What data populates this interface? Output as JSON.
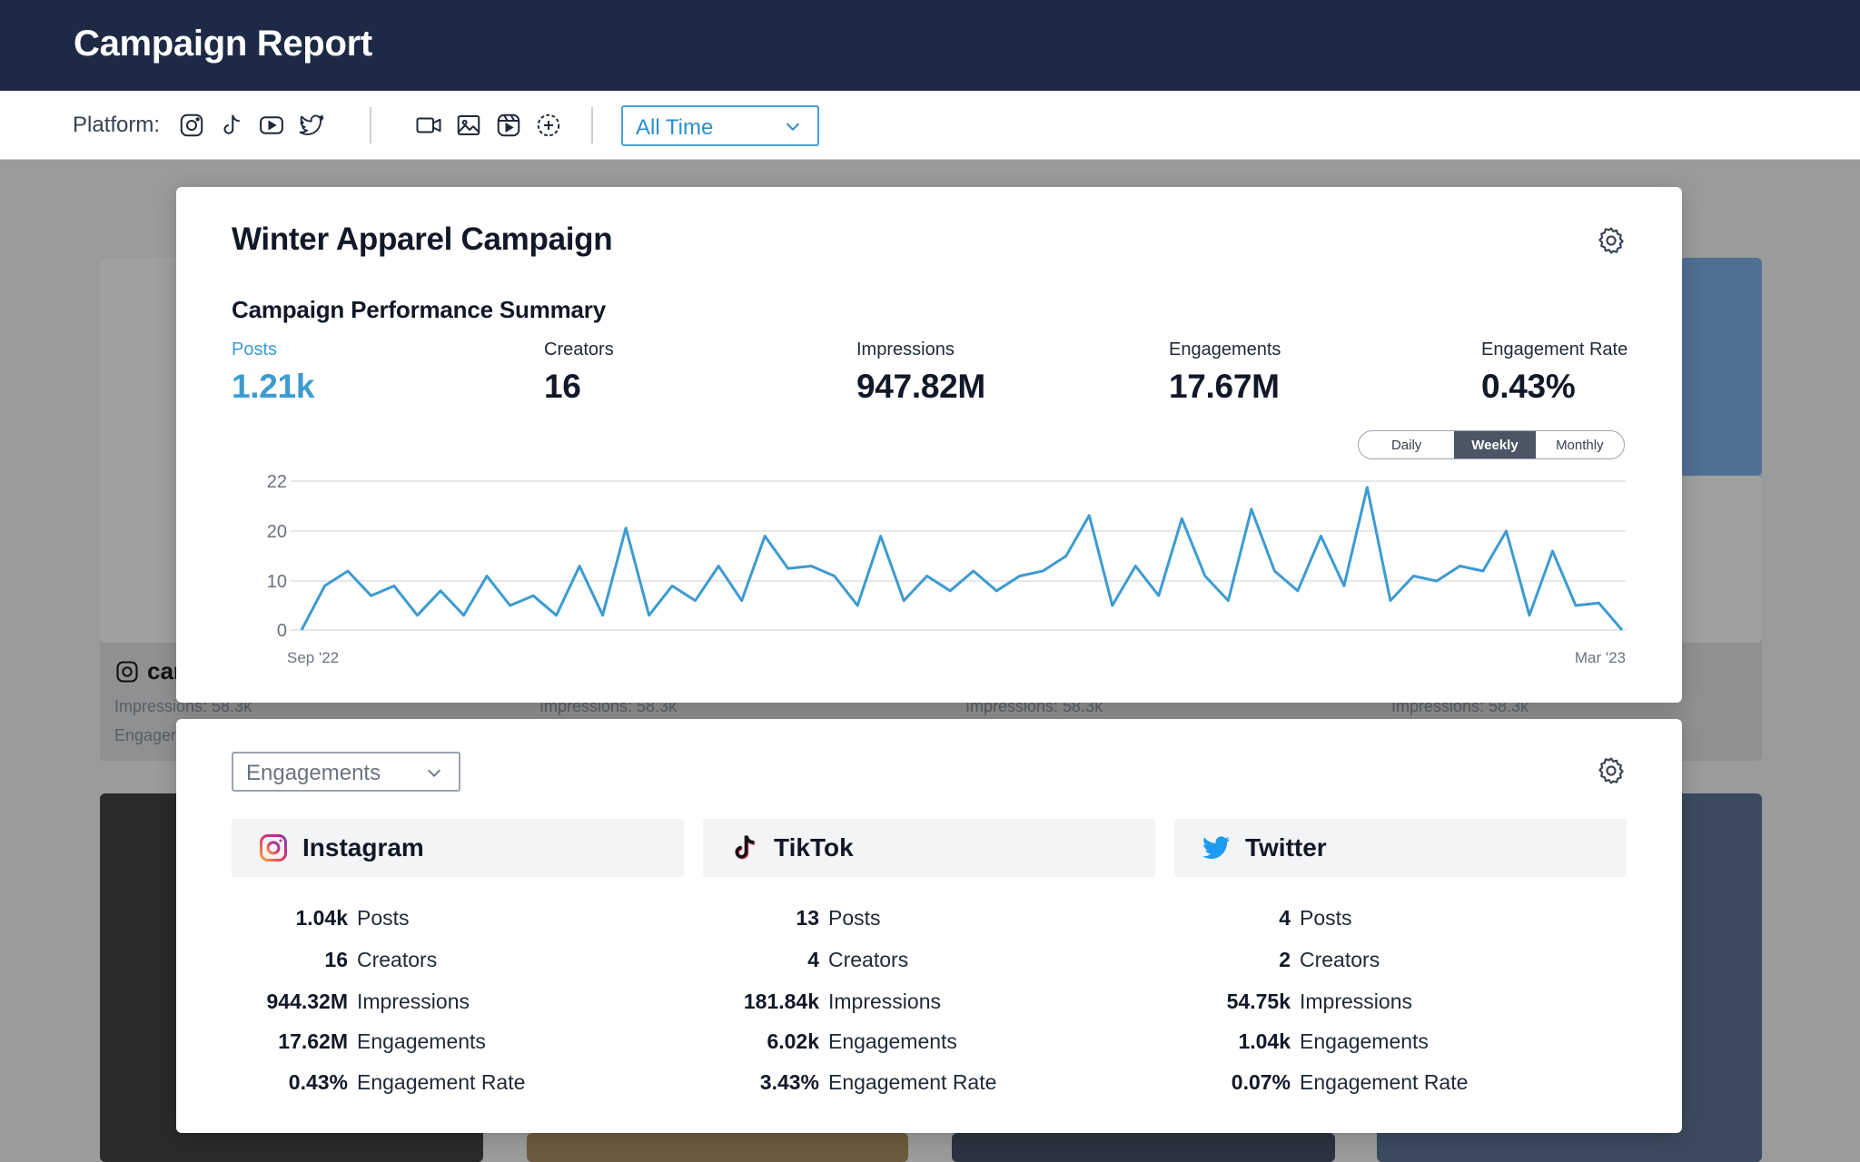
{
  "header": {
    "title": "Campaign Report"
  },
  "filters": {
    "platform_label": "Platform:",
    "platform_icons": [
      "instagram-icon",
      "tiktok-icon",
      "youtube-icon",
      "twitter-icon"
    ],
    "type_icons": [
      "video-icon",
      "image-icon",
      "reel-icon",
      "add-circle-icon"
    ],
    "time_range": "All Time"
  },
  "background_cards": {
    "handle_fragment": "car",
    "impressions_text": "Impressions: 58.3k",
    "engagement_fragment": "Engager"
  },
  "campaign": {
    "title": "Winter Apparel Campaign",
    "summary_title": "Campaign Performance Summary",
    "stats": [
      {
        "label": "Posts",
        "value": "1.21k",
        "active": true
      },
      {
        "label": "Creators",
        "value": "16",
        "active": false
      },
      {
        "label": "Impressions",
        "value": "947.82M",
        "active": false
      },
      {
        "label": "Engagements",
        "value": "17.67M",
        "active": false
      },
      {
        "label": "Engagement Rate",
        "value": "0.43%",
        "active": false
      }
    ],
    "granularity": {
      "options": [
        "Daily",
        "Weekly",
        "Monthly"
      ],
      "selected": "Weekly"
    }
  },
  "chart_data": {
    "type": "line",
    "x_start_label": "Sep '22",
    "x_end_label": "Mar '23",
    "y_ticks": [
      "0",
      "10",
      "20",
      "22"
    ],
    "grid": true,
    "color": "#3d9bd1",
    "values": [
      0,
      9,
      12,
      7,
      9,
      3,
      8,
      3,
      11,
      5,
      7,
      3,
      13,
      3,
      20.5,
      3,
      9,
      6,
      13,
      6,
      19,
      12.5,
      13,
      11,
      5,
      19,
      6,
      11,
      8,
      12,
      8,
      11,
      12,
      15,
      22.5,
      5,
      13,
      7,
      22,
      11,
      6,
      23.5,
      12,
      8,
      19,
      9,
      27,
      6,
      11,
      10,
      13,
      12,
      20,
      3,
      16,
      5,
      5.5,
      0
    ]
  },
  "breakdown": {
    "metric_selector": "Engagements",
    "platforms": [
      {
        "name": "Instagram",
        "icon": "instagram-icon",
        "rows": [
          {
            "value": "1.04k",
            "label": "Posts"
          },
          {
            "value": "16",
            "label": "Creators"
          },
          {
            "value": "944.32M",
            "label": "Impressions"
          },
          {
            "value": "17.62M",
            "label": "Engagements"
          },
          {
            "value": "0.43%",
            "label": "Engagement Rate"
          }
        ]
      },
      {
        "name": "TikTok",
        "icon": "tiktok-icon",
        "rows": [
          {
            "value": "13",
            "label": "Posts"
          },
          {
            "value": "4",
            "label": "Creators"
          },
          {
            "value": "181.84k",
            "label": "Impressions"
          },
          {
            "value": "6.02k",
            "label": "Engagements"
          },
          {
            "value": "3.43%",
            "label": "Engagement Rate"
          }
        ]
      },
      {
        "name": "Twitter",
        "icon": "twitter-icon",
        "rows": [
          {
            "value": "4",
            "label": "Posts"
          },
          {
            "value": "2",
            "label": "Creators"
          },
          {
            "value": "54.75k",
            "label": "Impressions"
          },
          {
            "value": "1.04k",
            "label": "Engagements"
          },
          {
            "value": "0.07%",
            "label": "Engagement Rate"
          }
        ]
      }
    ]
  }
}
